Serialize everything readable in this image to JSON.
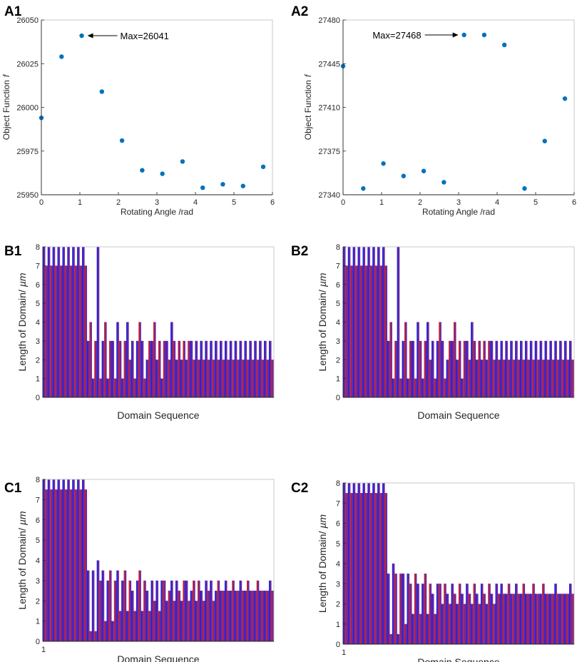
{
  "colors": {
    "scatter": "#0072BD",
    "bar_blue": "#1f1fe0",
    "bar_red": "#d62020",
    "bar_fill": "#6a2aa0",
    "axis": "#262626"
  },
  "chart_data": [
    {
      "id": "A1",
      "type": "scatter",
      "panel_label": "A1",
      "xlabel": "Rotating Angle /rad",
      "ylabel": "Object Function",
      "ylabel_symbol": "f",
      "xlim": [
        0,
        6
      ],
      "ylim": [
        25950,
        26050
      ],
      "xticks": [
        "0",
        "1",
        "2",
        "3",
        "4",
        "5",
        "6"
      ],
      "yticks": [
        "25950",
        "25975",
        "26000",
        "26025",
        "26050"
      ],
      "x": [
        0,
        0.524,
        1.047,
        1.571,
        2.094,
        2.618,
        3.142,
        3.665,
        4.189,
        4.712,
        5.236,
        5.76
      ],
      "y": [
        25994,
        26029,
        26041,
        26009,
        25981,
        25964,
        25962,
        25969,
        25954,
        25956,
        25955,
        25966
      ],
      "annotation": {
        "text": "Max=26041",
        "x": 1.047,
        "y": 26041,
        "side": "right"
      }
    },
    {
      "id": "A2",
      "type": "scatter",
      "panel_label": "A2",
      "xlabel": "Rotating Angle /rad",
      "ylabel": "Object Function",
      "ylabel_symbol": "f",
      "xlim": [
        0,
        6
      ],
      "ylim": [
        27340,
        27480
      ],
      "xticks": [
        "0",
        "1",
        "2",
        "3",
        "4",
        "5",
        "6"
      ],
      "yticks": [
        "27340",
        "27375",
        "27410",
        "27445",
        "27480"
      ],
      "x": [
        0,
        0.524,
        1.047,
        1.571,
        2.094,
        2.618,
        3.142,
        3.665,
        4.189,
        4.712,
        5.236,
        5.76
      ],
      "y": [
        27443,
        27345,
        27365,
        27355,
        27359,
        27350,
        27468,
        27468,
        27460,
        27345,
        27383,
        27417
      ],
      "annotation": {
        "text": "Max=27468",
        "x": 3.142,
        "y": 27468,
        "side": "left"
      }
    },
    {
      "id": "B1",
      "type": "bar",
      "panel_label": "B1",
      "xlabel": "Domain Sequence",
      "ylabel": "Length of Domain/",
      "ylabel_unit": "µm",
      "ylim": [
        0,
        8
      ],
      "yticks": [
        "0",
        "1",
        "2",
        "3",
        "4",
        "5",
        "6",
        "7",
        "8"
      ],
      "xticks": [],
      "values": [
        8,
        7,
        8,
        7,
        8,
        7,
        8,
        7,
        8,
        7,
        8,
        7,
        8,
        7,
        8,
        7,
        8,
        7,
        3,
        4,
        1,
        3,
        8,
        1,
        3,
        4,
        1,
        3,
        3,
        1,
        4,
        3,
        1,
        3,
        4,
        2,
        3,
        1,
        3,
        4,
        3,
        1,
        2,
        3,
        3,
        4,
        2,
        3,
        1,
        3,
        3,
        2,
        4,
        3,
        2,
        3,
        2,
        3,
        2,
        3,
        3,
        2,
        3,
        2,
        3,
        2,
        3,
        2,
        3,
        2,
        3,
        2,
        3,
        2,
        3,
        2,
        3,
        2,
        3,
        2,
        3,
        2,
        3,
        2,
        3,
        2,
        3,
        2,
        3,
        2,
        3,
        2,
        3,
        2
      ]
    },
    {
      "id": "B2",
      "type": "bar",
      "panel_label": "B2",
      "xlabel": "Domain Sequence",
      "ylabel": "Length of Domain/",
      "ylabel_unit": "µm",
      "ylim": [
        0,
        8
      ],
      "yticks": [
        "0",
        "1",
        "2",
        "3",
        "4",
        "5",
        "6",
        "7",
        "8"
      ],
      "xticks": [],
      "values": [
        8,
        7,
        8,
        7,
        8,
        7,
        8,
        7,
        8,
        7,
        8,
        7,
        8,
        7,
        8,
        7,
        8,
        7,
        3,
        4,
        1,
        3,
        8,
        1,
        3,
        4,
        1,
        3,
        3,
        1,
        4,
        3,
        1,
        3,
        4,
        2,
        3,
        1,
        3,
        4,
        3,
        1,
        2,
        3,
        3,
        4,
        2,
        3,
        1,
        3,
        3,
        2,
        4,
        3,
        2,
        3,
        2,
        3,
        2,
        3,
        3,
        2,
        3,
        2,
        3,
        2,
        3,
        2,
        3,
        2,
        3,
        2,
        3,
        2,
        3,
        2,
        3,
        2,
        3,
        2,
        3,
        2,
        3,
        2,
        3,
        2,
        3,
        2,
        3,
        2,
        3,
        2,
        3,
        2
      ]
    },
    {
      "id": "C1",
      "type": "bar",
      "panel_label": "C1",
      "xlabel": "Domain Sequence",
      "ylabel": "Length of Domain/",
      "ylabel_unit": "µm",
      "ylim": [
        0,
        8
      ],
      "yticks": [
        "0",
        "1",
        "2",
        "3",
        "4",
        "5",
        "6",
        "7",
        "8"
      ],
      "xticks": [
        "1"
      ],
      "values": [
        8,
        7.5,
        8,
        7.5,
        8,
        7.5,
        8,
        7.5,
        8,
        7.5,
        8,
        7.5,
        8,
        7.5,
        8,
        7.5,
        8,
        7.5,
        3.5,
        0.5,
        3.5,
        0.5,
        4,
        3,
        3.5,
        1,
        3,
        3.5,
        1,
        3,
        3.5,
        1.5,
        3,
        3.5,
        1.5,
        3,
        2.5,
        1.5,
        3,
        3.5,
        1.5,
        3,
        2.5,
        1.5,
        3,
        2,
        3,
        1.5,
        3,
        3,
        2,
        2.5,
        3,
        2,
        3,
        2.5,
        2,
        3,
        3,
        2,
        2.5,
        3,
        2,
        3,
        2.5,
        2,
        3,
        2.5,
        3,
        2,
        2.5,
        3,
        2.5,
        2.5,
        3,
        2.5,
        2.5,
        3,
        2.5,
        2.5,
        3,
        2.5,
        2.5,
        3,
        2.5,
        2.5,
        2.5,
        3,
        2.5,
        2.5,
        2.5,
        2.5,
        3,
        2.5
      ]
    },
    {
      "id": "C2",
      "type": "bar",
      "panel_label": "C2",
      "xlabel": "Domain Sequence",
      "ylabel": "Length of Domain/",
      "ylabel_unit": "µm",
      "ylim": [
        0,
        8
      ],
      "yticks": [
        "0",
        "1",
        "2",
        "3",
        "4",
        "5",
        "6",
        "7",
        "8"
      ],
      "xticks": [
        "1"
      ],
      "values": [
        8,
        7.5,
        8,
        7.5,
        8,
        7.5,
        8,
        7.5,
        8,
        7.5,
        8,
        7.5,
        8,
        7.5,
        8,
        7.5,
        8,
        7.5,
        3.5,
        0.5,
        4,
        3.5,
        0.5,
        3.5,
        3.5,
        1,
        3.5,
        3,
        1.5,
        3.5,
        3,
        1.5,
        3,
        3.5,
        1.5,
        3,
        2.5,
        1.5,
        3,
        3,
        2,
        3,
        2.5,
        2,
        3,
        2.5,
        2,
        3,
        2.5,
        2,
        3,
        2.5,
        2,
        3,
        2.5,
        2,
        3,
        2.5,
        2,
        3,
        2.5,
        2,
        3,
        2.5,
        3,
        2.5,
        2.5,
        3,
        2.5,
        2.5,
        3,
        2.5,
        2.5,
        3,
        2.5,
        2.5,
        2.5,
        3,
        2.5,
        2.5,
        2.5,
        3,
        2.5,
        2.5,
        2.5,
        2.5,
        3,
        2.5,
        2.5,
        2.5,
        2.5,
        2.5,
        3,
        2.5
      ]
    }
  ]
}
